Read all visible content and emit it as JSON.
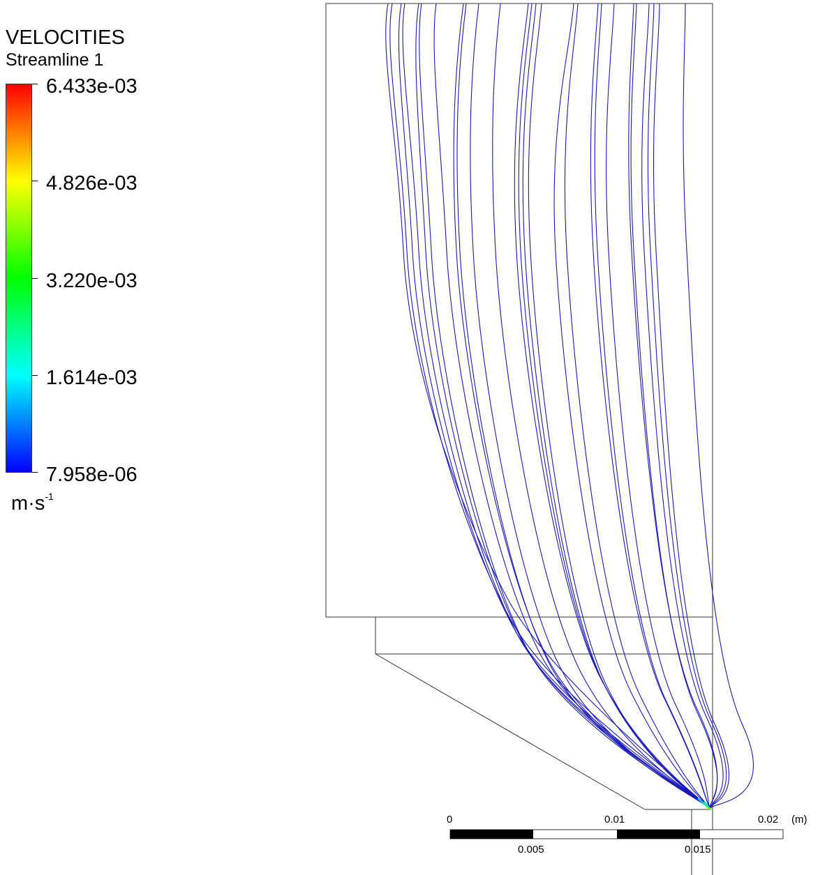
{
  "legend": {
    "title": "VELOCITIES",
    "subtitle": "Streamline 1",
    "ticks": [
      "6.433e-03",
      "4.826e-03",
      "3.220e-03",
      "1.614e-03",
      "7.958e-06"
    ],
    "unit": "m·s",
    "unit_exponent": "-1",
    "colormap": [
      "#0000ff",
      "#00ffff",
      "#00ff00",
      "#ffff00",
      "#ff0000"
    ]
  },
  "scale_bar": {
    "labels_top": [
      "0",
      "0.01",
      "0.02"
    ],
    "labels_bottom": [
      "0.005",
      "0.015"
    ],
    "unit": "(m)"
  },
  "colors": {
    "streamline": "#1a1ab8",
    "outline": "#333333"
  }
}
